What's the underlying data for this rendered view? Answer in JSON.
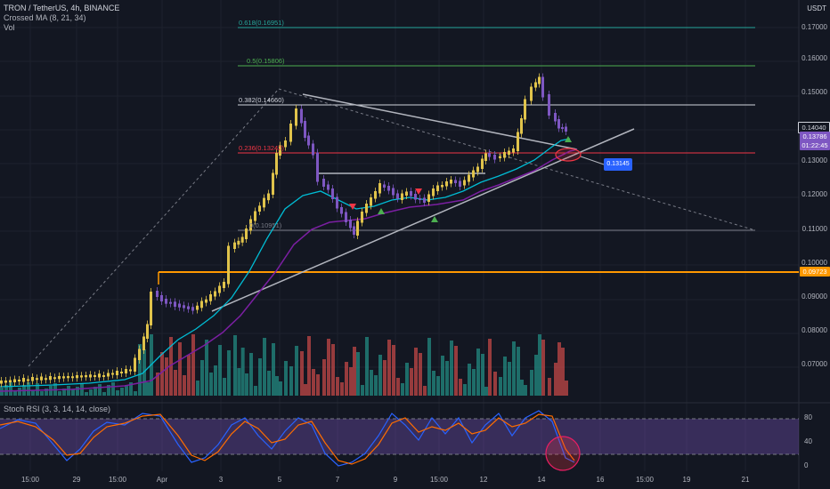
{
  "legend": {
    "title": "TRON / TetherUS, 4h, BINANCE",
    "ma": "Crossed MA (8, 21, 34)",
    "vol": "Vol"
  },
  "currency": "USDT",
  "price_axis": [
    "0.17000",
    "0.16000",
    "0.15000",
    "0.13000",
    "0.12000",
    "0.11000",
    "0.10000",
    "0.09000",
    "0.08000",
    "0.07000"
  ],
  "price_labels": {
    "last": "0.14040",
    "ma": "0.13786",
    "time": "01:22:45",
    "orange": "0.09723"
  },
  "fib_levels": [
    {
      "label": "0.618(0.16951)",
      "color": "#26a69a"
    },
    {
      "label": "0.5(0.15806)",
      "color": "#4caf50"
    },
    {
      "label": "0.382(0.14660)",
      "color": "#d1d4dc"
    },
    {
      "label": "0.236(0.13242)",
      "color": "#f23645"
    },
    {
      "label": "0(0.10951)",
      "color": "#787b86"
    }
  ],
  "price_tag": "0.13145",
  "time_axis": [
    "15:00",
    "29",
    "15:00",
    "Apr",
    "3",
    "5",
    "7",
    "9",
    "15:00",
    "12",
    "14",
    "16",
    "15:00",
    "19",
    "21"
  ],
  "rsi": {
    "title": "Stoch RSI (3, 3, 14, 14, close)",
    "ticks": [
      "80",
      "40",
      "0"
    ]
  },
  "colors": {
    "background": "#131722",
    "up": "#e0c34b",
    "down": "#7e57c2",
    "ma_fast": "#00bcd4",
    "ma_slow": "#7b1fa2",
    "vol_up": "#26a69a",
    "vol_down": "#ef5350"
  }
}
